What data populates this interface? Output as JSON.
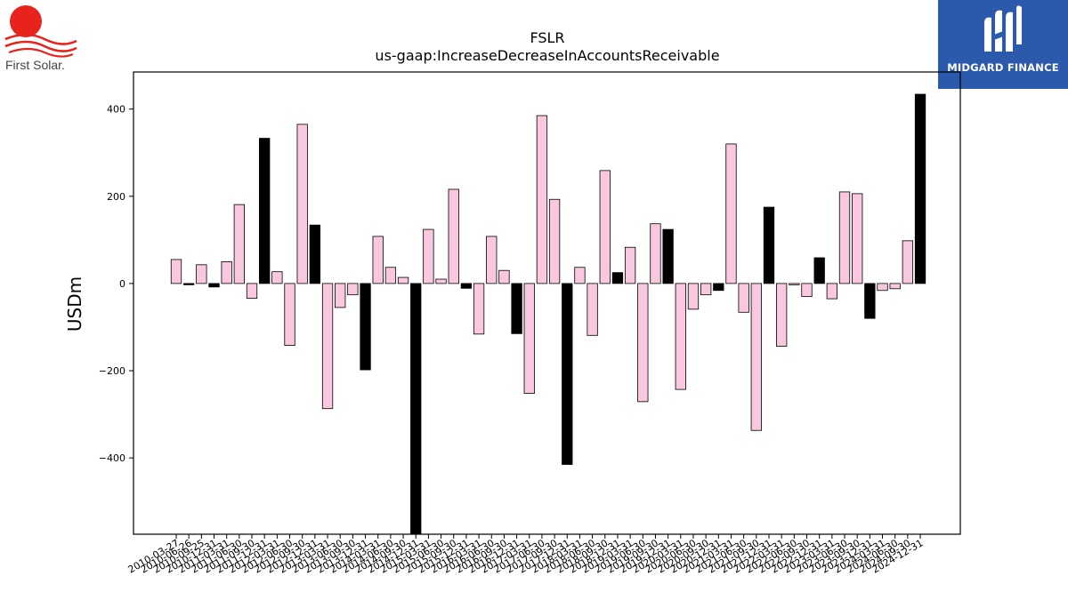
{
  "logos": {
    "left_text": "First Solar.",
    "right_text": "MIDGARD FINANCE"
  },
  "colors": {
    "positive_bar": "#f9c8df",
    "highlight_bar": "#000000",
    "logo_red": "#e8231c",
    "brand_blue": "#2b5aad"
  },
  "chart_data": {
    "type": "bar",
    "title": "FSLR",
    "subtitle": "us-gaap:IncreaseDecreaseInAccountsReceivable",
    "xlabel": "",
    "ylabel": "USDm",
    "ylim": [
      -575,
      485
    ],
    "yticks": [
      400,
      200,
      0,
      -200,
      -400
    ],
    "grid": false,
    "categories": [
      "2010-03-27",
      "2010-06-26",
      "2010-09-25",
      "2010-12-31",
      "2011-03-31",
      "2011-06-30",
      "2011-09-30",
      "2011-12-31",
      "2012-03-31",
      "2012-06-30",
      "2012-09-30",
      "2012-12-31",
      "2013-03-31",
      "2013-06-30",
      "2013-09-30",
      "2013-12-31",
      "2014-03-31",
      "2014-06-30",
      "2014-09-30",
      "2014-12-31",
      "2015-03-31",
      "2015-06-30",
      "2015-09-30",
      "2015-12-31",
      "2016-03-31",
      "2016-06-30",
      "2016-09-30",
      "2016-12-31",
      "2017-03-31",
      "2017-06-30",
      "2017-09-30",
      "2017-12-31",
      "2018-03-31",
      "2018-06-30",
      "2018-09-30",
      "2018-12-31",
      "2019-03-31",
      "2019-06-30",
      "2019-09-30",
      "2019-12-31",
      "2020-03-31",
      "2020-06-30",
      "2020-09-30",
      "2020-12-31",
      "2021-03-31",
      "2021-06-30",
      "2021-09-30",
      "2021-12-31",
      "2022-03-31",
      "2022-06-30",
      "2022-09-30",
      "2022-12-31",
      "2023-03-31",
      "2023-06-30",
      "2023-09-30",
      "2023-12-31",
      "2024-03-31",
      "2024-06-30",
      "2024-09-30",
      "2024-12-31"
    ],
    "values": [
      55,
      -3,
      43,
      -8,
      50,
      181,
      -34,
      333,
      27,
      -142,
      365,
      134,
      -287,
      -55,
      -26,
      -198,
      108,
      37,
      14,
      -600,
      124,
      10,
      216,
      -11,
      -116,
      108,
      30,
      -115,
      -252,
      385,
      193,
      -415,
      37,
      -119,
      259,
      25,
      83,
      -271,
      137,
      124,
      -243,
      -59,
      -26,
      -16,
      320,
      -66,
      -337,
      175,
      -144,
      -3,
      -30,
      59,
      -35,
      210,
      206,
      -80,
      -16,
      -12,
      98,
      434
    ],
    "highlight": [
      false,
      true,
      false,
      true,
      false,
      false,
      false,
      true,
      false,
      false,
      false,
      true,
      false,
      false,
      false,
      true,
      false,
      false,
      false,
      true,
      false,
      false,
      false,
      true,
      false,
      false,
      false,
      true,
      false,
      false,
      false,
      true,
      false,
      false,
      false,
      true,
      false,
      false,
      false,
      true,
      false,
      false,
      false,
      true,
      false,
      false,
      false,
      true,
      false,
      false,
      false,
      true,
      false,
      false,
      false,
      true,
      false,
      false,
      false,
      true
    ]
  }
}
